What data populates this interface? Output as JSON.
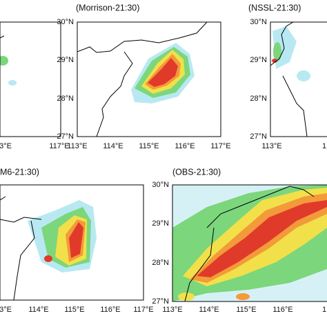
{
  "panels": [
    {
      "lon_labels": [
        "3°E",
        "117°E"
      ]
    },
    {
      "title": "(Morrison-21:30)",
      "lat_labels": [
        "30°N",
        "29°N",
        "28°N",
        "27°N"
      ],
      "lon_labels": [
        "113°E",
        "114°E",
        "115°E",
        "116°E",
        "117°E"
      ]
    },
    {
      "title": "(NSSL-21:30)",
      "lat_labels": [
        "30°N",
        "29°N",
        "28°N",
        "27°N"
      ],
      "lon_labels": [
        "113°E",
        "1"
      ]
    },
    {
      "title": "M6-21:30)",
      "lon_labels": [
        "3°E",
        "114°E",
        "115°E",
        "116°E",
        "117°E"
      ]
    },
    {
      "title": "(OBS-21:30)",
      "lat_labels": [
        "30°N",
        "29°N",
        "28°N",
        "27°N"
      ],
      "lon_labels": [
        "113°E",
        "114°E",
        "115°E",
        "116°E",
        "1"
      ]
    }
  ]
}
